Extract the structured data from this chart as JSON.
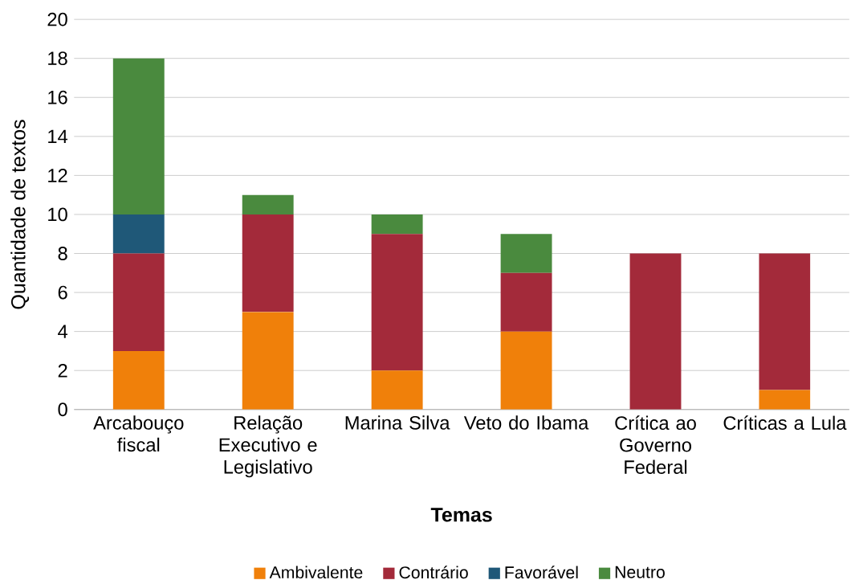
{
  "chart_data": {
    "type": "bar",
    "stacked": true,
    "xlabel": "Temas",
    "ylabel": "Quantidade de textos",
    "categories": [
      "Arcabouço fiscal",
      "Relação Executivo e Legislativo",
      "Marina Silva",
      "Veto do Ibama",
      "Crítica ao Governo Federal",
      "Críticas a Lula"
    ],
    "series": [
      {
        "name": "Ambivalente",
        "color": "#f0800a",
        "values": [
          3,
          5,
          2,
          4,
          0,
          1
        ]
      },
      {
        "name": "Contrário",
        "color": "#a32a3a",
        "values": [
          5,
          5,
          7,
          3,
          8,
          7
        ]
      },
      {
        "name": "Favorável",
        "color": "#1f5878",
        "values": [
          2,
          0,
          0,
          0,
          0,
          0
        ]
      },
      {
        "name": "Neutro",
        "color": "#4a8a3e",
        "values": [
          8,
          1,
          1,
          2,
          0,
          0
        ]
      }
    ],
    "ylim": [
      0,
      20
    ],
    "yticks": [
      0,
      2,
      4,
      6,
      8,
      10,
      12,
      14,
      16,
      18,
      20
    ],
    "grid": "y",
    "legend": "bottom"
  }
}
